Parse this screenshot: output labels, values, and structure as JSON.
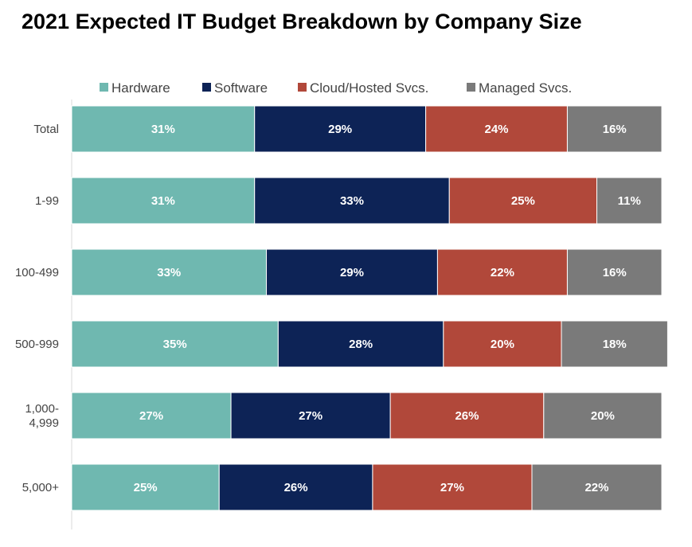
{
  "title": "2021 Expected IT Budget Breakdown by Company Size",
  "chart_data": {
    "type": "bar",
    "orientation": "horizontal",
    "stacked": true,
    "title": "2021 Expected IT Budget Breakdown by Company Size",
    "xlabel": "",
    "ylabel": "",
    "xlim": [
      0,
      100
    ],
    "grid": false,
    "legend_position": "top",
    "categories": [
      [
        "Total"
      ],
      [
        "1-99"
      ],
      [
        "100-499"
      ],
      [
        "500-999"
      ],
      [
        "1,000-",
        "4,999"
      ],
      [
        "5,000+"
      ]
    ],
    "series": [
      {
        "name": "Hardware",
        "color": "#6fb8b0",
        "values": [
          31,
          31,
          33,
          35,
          27,
          25
        ]
      },
      {
        "name": "Software",
        "color": "#0d2356",
        "values": [
          29,
          33,
          29,
          28,
          27,
          26
        ]
      },
      {
        "name": "Cloud/Hosted Svcs.",
        "color": "#b1483a",
        "values": [
          24,
          25,
          22,
          20,
          26,
          27
        ]
      },
      {
        "name": "Managed Svcs.",
        "color": "#7a7a7a",
        "values": [
          16,
          11,
          16,
          18,
          20,
          22
        ]
      }
    ],
    "value_suffix": "%"
  }
}
